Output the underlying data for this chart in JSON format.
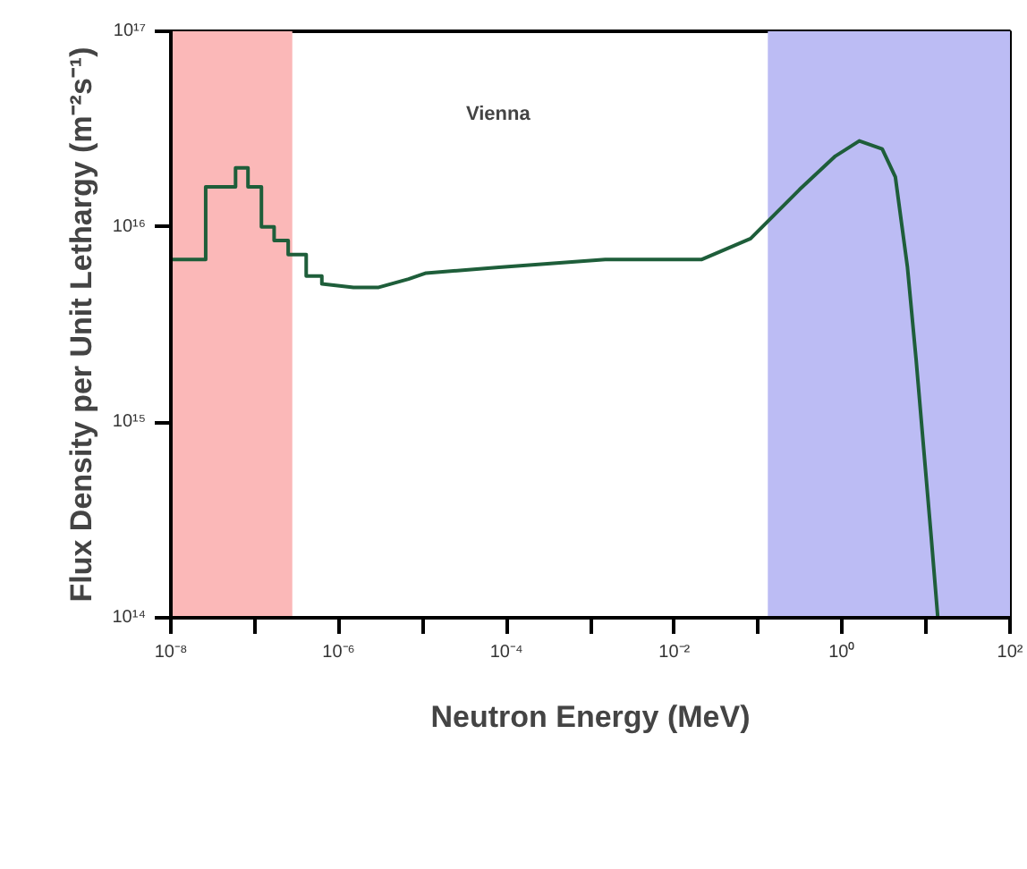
{
  "chart_data": {
    "type": "line",
    "log": "xy",
    "grid": false,
    "marker": "none",
    "line_style": "solid",
    "xlabel": "Neutron Energy (MeV)",
    "ylabel": "Flux Density per Unit Lethargy (m⁻²s⁻¹)",
    "annotations": [
      "Vienna"
    ],
    "xlim": [
      1e-08,
      100
    ],
    "ylim": [
      100000000000000.0,
      1e+17
    ],
    "xticks": [
      {
        "value": 1e-08,
        "label": "10⁻⁸"
      },
      {
        "value": 1e-07,
        "label": null
      },
      {
        "value": 1e-06,
        "label": "10⁻⁶"
      },
      {
        "value": 1e-05,
        "label": null
      },
      {
        "value": 0.0001,
        "label": "10⁻⁴"
      },
      {
        "value": 0.001,
        "label": null
      },
      {
        "value": 0.01,
        "label": "10⁻²"
      },
      {
        "value": 0.1,
        "label": null
      },
      {
        "value": 1,
        "label": "10⁰"
      },
      {
        "value": 10,
        "label": null
      },
      {
        "value": 100,
        "label": "10²"
      }
    ],
    "yticks": [
      {
        "value": 100000000000000.0,
        "label": "10¹⁴"
      },
      {
        "value": 1000000000000000.0,
        "label": "10¹⁵"
      },
      {
        "value": 1e+16,
        "label": "10¹⁶"
      },
      {
        "value": 1e+17,
        "label": "10¹⁷"
      }
    ],
    "bands": [
      {
        "axis": "x",
        "from": 1e-08,
        "to": 2.8e-07,
        "color": "#fbb8b8"
      },
      {
        "axis": "x",
        "from": 0.13,
        "to": 100,
        "color": "#bcbcf4"
      }
    ],
    "series": [
      {
        "color": "#1e5e3a",
        "x": [
          1e-08,
          2.6e-08,
          2.6e-08,
          5.9e-08,
          5.9e-08,
          8.3e-08,
          8.3e-08,
          1.2e-07,
          1.2e-07,
          1.7e-07,
          1.7e-07,
          2.5e-07,
          2.5e-07,
          4.1e-07,
          4.1e-07,
          6.3e-07,
          6.3e-07,
          1.5e-06,
          3e-06,
          6.8e-06,
          1.1e-05,
          8.1e-05,
          0.0015,
          0.021,
          0.081,
          0.31,
          0.83,
          1.6,
          3.0,
          4.3,
          6.0,
          7.6,
          11.5,
          13.8
        ],
        "values": [
          6800000000000000.0,
          6800000000000000.0,
          1.6e+16,
          1.6e+16,
          2e+16,
          2e+16,
          1.6e+16,
          1.6e+16,
          1e+16,
          1e+16,
          8500000000000000.0,
          8500000000000000.0,
          7200000000000000.0,
          7200000000000000.0,
          5600000000000000.0,
          5600000000000000.0,
          5100000000000000.0,
          4900000000000000.0,
          4900000000000000.0,
          5400000000000000.0,
          5800000000000000.0,
          6200000000000000.0,
          6800000000000000.0,
          6800000000000000.0,
          8700000000000000.0,
          1.55e+16,
          2.3e+16,
          2.75e+16,
          2.5e+16,
          1.8e+16,
          6200000000000000.0,
          2100000000000000.0,
          260000000000000.0,
          100000000000000.0
        ]
      }
    ]
  }
}
